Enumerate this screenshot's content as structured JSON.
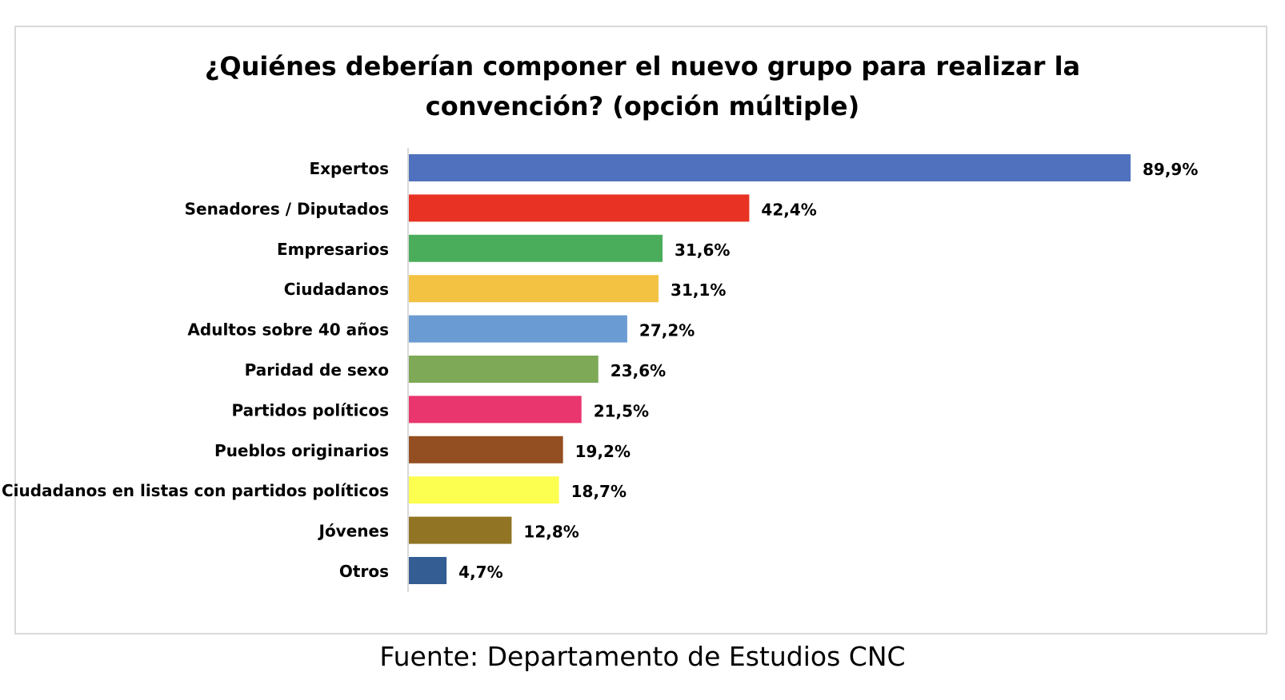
{
  "chart_data": {
    "type": "bar",
    "orientation": "horizontal",
    "title_line1": "¿Quiénes deberían componer el nuevo grupo para realizar la",
    "title_line2": "convención? (opción múltiple)",
    "categories": [
      "Expertos",
      "Senadores / Diputados",
      "Empresarios",
      "Ciudadanos",
      "Adultos sobre 40 años",
      "Paridad de sexo",
      "Partidos políticos",
      "Pueblos originarios",
      "Ciudadanos en listas con partidos políticos",
      "Jóvenes",
      "Otros"
    ],
    "values": [
      89.9,
      42.4,
      31.6,
      31.1,
      27.2,
      23.6,
      21.5,
      19.2,
      18.7,
      12.8,
      4.7
    ],
    "value_labels": [
      "89,9%",
      "42,4%",
      "31,6%",
      "31,1%",
      "27,2%",
      "23,6%",
      "21,5%",
      "19,2%",
      "18,7%",
      "12,8%",
      "4,7%"
    ],
    "colors": [
      "#4f71be",
      "#e83223",
      "#4aad5b",
      "#f3c242",
      "#6a9bd2",
      "#7ea957",
      "#e9366e",
      "#934e22",
      "#fcfe50",
      "#917524",
      "#345d93"
    ],
    "xlim": [
      0,
      100
    ],
    "grid": false,
    "legend": "none"
  },
  "source": "Fuente: Departamento de Estudios CNC"
}
